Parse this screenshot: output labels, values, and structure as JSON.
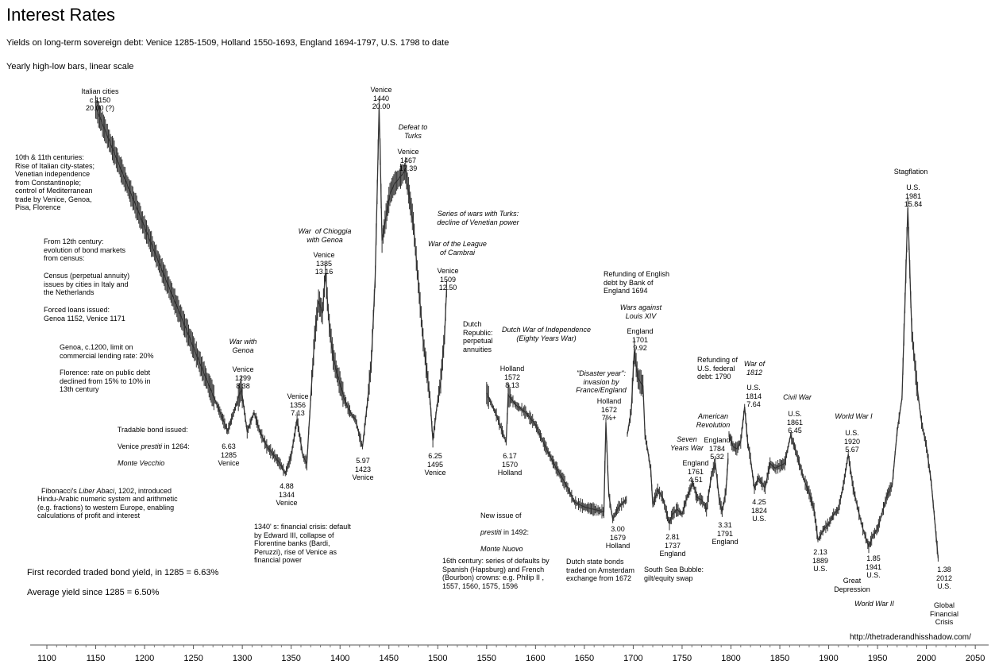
{
  "chart_data": {
    "type": "line",
    "title": "Interest Rates",
    "subtitle": "Yields on long-term sovereign debt: Venice 1285-1509, Holland 1550-1693, England 1694-1797, U.S. 1798 to date",
    "subtitle2": "Yearly high-low bars, linear scale",
    "xlabel": "",
    "ylabel": "",
    "xlim": [
      1090,
      2050
    ],
    "ylim": [
      0,
      20.5
    ],
    "ticks": [
      "1100",
      "1150",
      "1200",
      "1250",
      "1300",
      "1350",
      "1400",
      "1450",
      "1500",
      "1550",
      "1600",
      "1650",
      "1700",
      "1750",
      "1800",
      "1850",
      "1900",
      "1950",
      "2000",
      "2050"
    ],
    "segments": [
      {
        "x": [
          1150,
          1285,
          1299,
          1305,
          1312,
          1318,
          1325,
          1333,
          1340,
          1344,
          1350,
          1356,
          1362,
          1366,
          1370,
          1374,
          1378,
          1382,
          1385,
          1389,
          1393,
          1397,
          1400,
          1404,
          1408,
          1412,
          1416,
          1420,
          1423,
          1428,
          1432,
          1436,
          1440,
          1443,
          1447,
          1451,
          1455,
          1459,
          1463,
          1467,
          1475,
          1485,
          1492,
          1495,
          1499,
          1503,
          1507,
          1509
        ],
        "y": [
          20.0,
          6.63,
          8.38,
          6.6,
          7.4,
          6.6,
          6.0,
          5.6,
          5.2,
          4.88,
          5.6,
          7.13,
          5.6,
          5.3,
          8.0,
          10.5,
          12.0,
          11.5,
          13.16,
          11.0,
          9.7,
          9.0,
          8.6,
          8.0,
          7.6,
          7.3,
          7.1,
          6.4,
          5.97,
          7.8,
          9.5,
          13.0,
          20.0,
          14.5,
          15.5,
          16.4,
          16.8,
          17.0,
          17.2,
          17.39,
          15.2,
          10.4,
          8.0,
          6.25,
          7.6,
          8.7,
          10.6,
          12.5
        ]
      },
      {
        "x": [
          1550,
          1560,
          1570,
          1572,
          1580,
          1590,
          1600,
          1610,
          1620,
          1630,
          1640,
          1650,
          1660,
          1670,
          1672,
          1675,
          1679,
          1685,
          1693
        ],
        "y": [
          8.2,
          7.3,
          6.17,
          8.13,
          7.7,
          7.4,
          6.9,
          6.0,
          5.2,
          4.5,
          3.7,
          3.5,
          3.4,
          3.3,
          7.0,
          4.0,
          3.0,
          3.5,
          3.8
        ]
      },
      {
        "x": [
          1694,
          1698,
          1701,
          1705,
          1710,
          1712,
          1715,
          1718,
          1720,
          1725,
          1730,
          1737,
          1740,
          1745,
          1750,
          1755,
          1761,
          1765,
          1770,
          1775,
          1780,
          1784,
          1788,
          1791,
          1795,
          1797
        ],
        "y": [
          6.5,
          7.5,
          9.92,
          8.8,
          8.5,
          6.5,
          5.8,
          5.0,
          3.6,
          4.2,
          3.9,
          2.81,
          3.2,
          3.4,
          3.2,
          3.9,
          4.51,
          3.9,
          3.8,
          3.4,
          4.8,
          5.32,
          3.8,
          3.31,
          4.2,
          5.5
        ]
      },
      {
        "x": [
          1798,
          1802,
          1806,
          1810,
          1814,
          1817,
          1820,
          1824,
          1828,
          1835,
          1840,
          1845,
          1850,
          1855,
          1861,
          1865,
          1870,
          1875,
          1880,
          1885,
          1889,
          1895,
          1900,
          1905,
          1910,
          1915,
          1920,
          1925,
          1930,
          1935,
          1941,
          1945,
          1950,
          1955,
          1960,
          1965,
          1970,
          1975,
          1981,
          1985,
          1990,
          1995,
          2000,
          2005,
          2012
        ],
        "y": [
          6.5,
          6.0,
          5.9,
          6.2,
          7.64,
          6.2,
          5.5,
          4.25,
          4.7,
          4.3,
          5.3,
          5.1,
          5.2,
          5.3,
          6.45,
          6.0,
          5.3,
          4.6,
          4.1,
          3.4,
          2.13,
          2.6,
          2.8,
          3.2,
          3.4,
          4.4,
          5.67,
          4.3,
          3.4,
          2.6,
          1.85,
          2.3,
          2.6,
          3.3,
          4.0,
          4.4,
          6.6,
          8.0,
          15.84,
          10.8,
          8.6,
          7.0,
          6.0,
          4.5,
          1.38
        ]
      }
    ]
  },
  "annotations": {
    "italian_cities": [
      "Italian cities",
      "c.1150",
      "20.00 (?)"
    ],
    "centuries_10_11": [
      "10th & 11th centuries:",
      "Rise of Italian city-states;",
      "Venetian independence",
      "from Constantinople;",
      "control of Mediterranean",
      "trade by Venice, Genoa,",
      "Pisa, Florence"
    ],
    "from_12th": [
      "From 12th century:",
      "evolution of bond markets",
      "from census:"
    ],
    "census": [
      "Census (perpetual annuity)",
      "issues by cities in Italy and",
      "the Netherlands"
    ],
    "forced_loans": [
      "Forced loans issued:",
      "Genoa 1152, Venice 1171"
    ],
    "genoa_1200": [
      "Genoa, c.1200, limit on",
      "commercial lending rate: 20%"
    ],
    "florence": [
      "Florence: rate on public debt",
      "declined from 15% to 10% in",
      "13th century"
    ],
    "tradable_line1": "Tradable bond issued:",
    "tradable_line2a": "Venice ",
    "tradable_line2b": "prestiti",
    "tradable_line2c": " in 1264:",
    "tradable_line3": "Monte Vecchio",
    "fibonacci_line1a": "Fibonacci's ",
    "fibonacci_line1b": "Liber Abaci",
    "fibonacci_line1c": ", 1202, introduced",
    "fibonacci_rest": [
      "Hindu-Arabic numeric system and arithmetic",
      "(e.g. fractions) to western Europe, enabling",
      "calculations of profit and interest"
    ],
    "war_genoa": [
      "War with",
      "Genoa"
    ],
    "venice_1299": [
      "Venice",
      "1299",
      "8.38"
    ],
    "venice_1285": [
      "6.63",
      "1285",
      "Venice"
    ],
    "venice_1356": [
      "Venice",
      "1356",
      "7.13"
    ],
    "venice_1344": [
      "4.88",
      "1344",
      "Venice"
    ],
    "war_chioggia": [
      "War  of Chioggia",
      "with Genoa"
    ],
    "venice_1385": [
      "Venice",
      "1385",
      "13.16"
    ],
    "venice_1423": [
      "5.97",
      "1423",
      "Venice"
    ],
    "venice_1440": [
      "Venice",
      "1440",
      "20.00"
    ],
    "defeat_turks": [
      "Defeat to",
      "Turks"
    ],
    "venice_1467": [
      "Venice",
      "1467",
      "17.39"
    ],
    "wars_turks": [
      "Series of wars with Turks:",
      "decline of Venetian power"
    ],
    "league_cambrai": [
      "War of the League",
      "of Cambrai"
    ],
    "venice_1509": [
      "Venice",
      "1509",
      "12.50"
    ],
    "venice_1495": [
      "6.25",
      "1495",
      "Venice"
    ],
    "crisis_1340": [
      "1340' s: financial crisis: default",
      "by Edward III, collapse of",
      "Florentine banks (Bardi,",
      "Peruzzi), rise of Venice as",
      "financial power"
    ],
    "dutch_republic": [
      "Dutch",
      "Republic:",
      "perpetual",
      "annuities"
    ],
    "dutch_war": [
      "Dutch War of Independence",
      "(Eighty Years War)"
    ],
    "holland_1572": [
      "Holland",
      "1572",
      "8.13"
    ],
    "holland_1570": [
      "6.17",
      "1570",
      "Holland"
    ],
    "new_issue_line1": "New issue of",
    "new_issue_line2a": "prestiti",
    "new_issue_line2b": " in 1492:",
    "new_issue_line3": "Monte Nuovo",
    "sixteenth_century": [
      "16th century: series of defaults by",
      "Spanish (Hapsburg) and French",
      "(Bourbon) crowns: e.g. Philip II ,",
      "1557, 1560, 1575, 1596"
    ],
    "disaster_year": [
      "\"Disaster year\":",
      "invasion by",
      "France/England"
    ],
    "holland_1672": [
      "Holland",
      "1672",
      "7%+"
    ],
    "holland_1679": [
      "3.00",
      "1679",
      "Holland"
    ],
    "dutch_state": [
      "Dutch state bonds",
      "traded on Amsterdam",
      "exchange from 1672"
    ],
    "refunding_england": [
      "Refunding of English",
      "debt by Bank of",
      "England 1694"
    ],
    "wars_louis": [
      "Wars against",
      "Louis XIV"
    ],
    "england_1701": [
      "England",
      "1701",
      "9.92"
    ],
    "seven_years": [
      "Seven",
      "Years War"
    ],
    "england_1761": [
      "England",
      "1761",
      "4.51"
    ],
    "england_1737": [
      "2.81",
      "1737",
      "England"
    ],
    "south_sea": [
      "South Sea Bubble:",
      "gilt/equity swap"
    ],
    "american_rev": [
      "American",
      "Revolution"
    ],
    "england_1784": [
      "England",
      "1784",
      "5.32"
    ],
    "england_1791": [
      "3.31",
      "1791",
      "England"
    ],
    "refunding_us": [
      "Refunding of",
      "U.S. federal",
      "debt: 1790"
    ],
    "war_1812": [
      "War of",
      "1812"
    ],
    "us_1814": [
      "U.S.",
      "1814",
      "7.64"
    ],
    "us_1824": [
      "4.25",
      "1824",
      "U.S."
    ],
    "civil_war": [
      "Civil War"
    ],
    "us_1861": [
      "U.S.",
      "1861",
      "6.45"
    ],
    "us_1889": [
      "2.13",
      "1889",
      "U.S."
    ],
    "ww1": [
      "World War I"
    ],
    "us_1920": [
      "U.S.",
      "1920",
      "5.67"
    ],
    "great_depression": [
      "Great",
      "Depression"
    ],
    "us_1941": [
      "1.85",
      "1941",
      "U.S."
    ],
    "ww2": [
      "World War II"
    ],
    "stagflation": [
      "Stagflation"
    ],
    "us_1981": [
      "U.S.",
      "1981",
      "15.84"
    ],
    "us_2012": [
      "1.38",
      "2012",
      "U.S."
    ],
    "gfc": [
      "Global",
      "Financial",
      "Crisis"
    ],
    "first_recorded": "First recorded traded bond yield, in 1285  = 6.63%",
    "average_yield": "Average yield since 1285 = 6.50%",
    "url": "http://thetraderandhisshadow.com/"
  }
}
